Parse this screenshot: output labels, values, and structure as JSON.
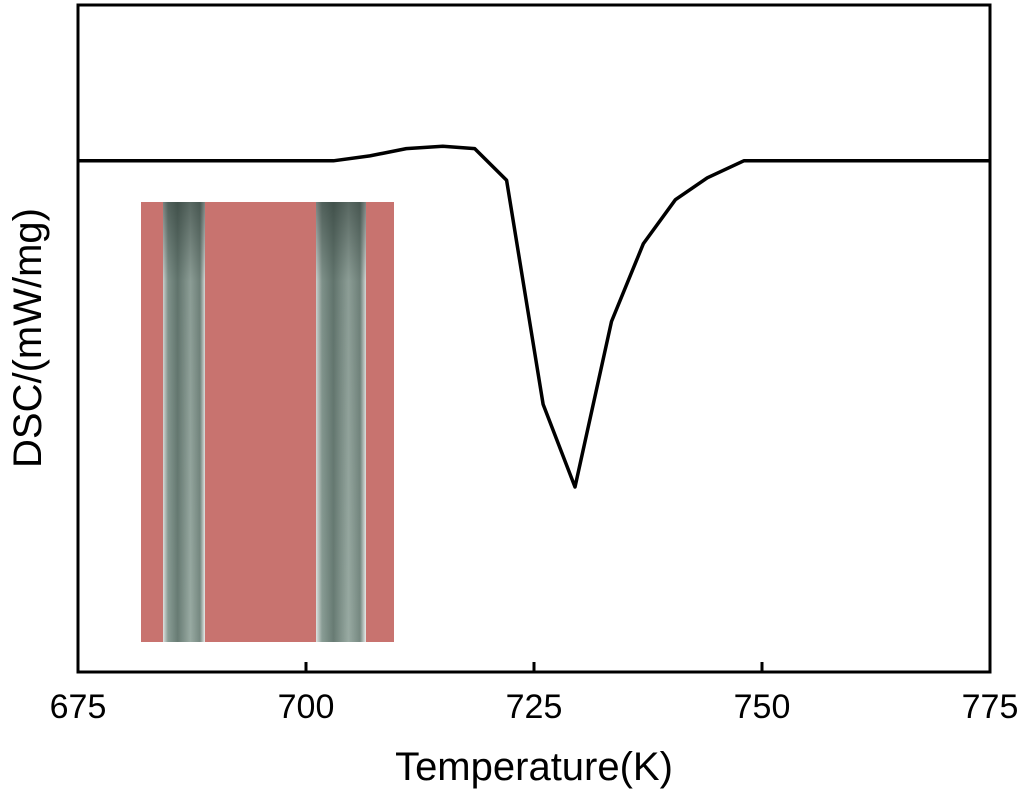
{
  "chart_data": {
    "type": "line",
    "title": "",
    "xlabel": "Temperature(K)",
    "ylabel": "DSC/(mW/mg)",
    "xlim": [
      675,
      775
    ],
    "xticks": [
      675,
      700,
      725,
      750,
      775
    ],
    "xtick_labels": [
      "675",
      "700",
      "725",
      "750",
      "775"
    ],
    "yticks": [],
    "ylim": [
      -1.05,
      0.32
    ],
    "grid": false,
    "legend": "none",
    "series": [
      {
        "x": [
          675,
          703,
          707,
          711,
          715,
          718.5,
          722,
          726,
          729.5,
          733.5,
          737,
          740.5,
          744,
          748,
          775
        ],
        "y": [
          0,
          0,
          0.01,
          0.025,
          0.03,
          0.025,
          -0.04,
          -0.5,
          -0.67,
          -0.33,
          -0.17,
          -0.08,
          -0.035,
          0,
          0
        ],
        "color": "#000000"
      }
    ],
    "inset": {
      "type": "photograph",
      "content": "two vertical metallic strips on a red background",
      "background_color": "#c8736f",
      "strip_color": "#a9b8b0"
    }
  }
}
